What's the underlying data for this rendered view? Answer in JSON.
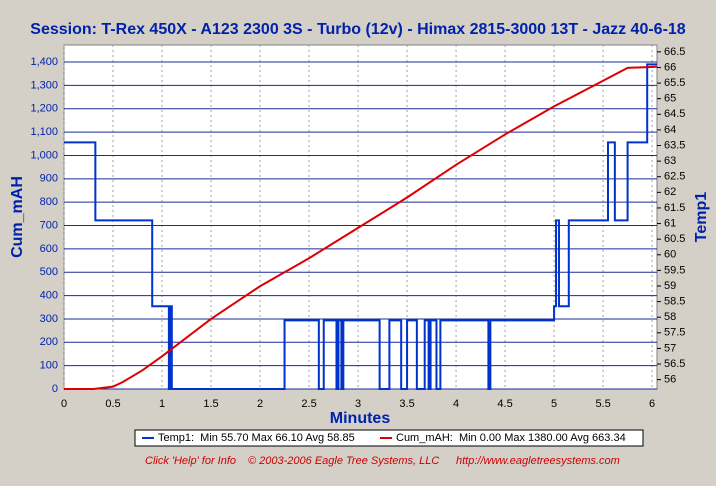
{
  "chart_data": {
    "type": "line",
    "title": "Session: T-Rex 450X - A123 2300 3S - Turbo (12v) - Himax 2815-3000 13T - Jazz 40-6-18",
    "x_label": "Minutes",
    "y_label": "Cum_mAH",
    "y2_label": "Temp1",
    "xlim": [
      0,
      6.05
    ],
    "xticks": [
      0,
      0.5,
      1,
      1.5,
      2,
      2.5,
      3,
      3.5,
      4,
      4.5,
      5,
      5.5,
      6
    ],
    "ylim": [
      0,
      1473
    ],
    "yticks": [
      0,
      100,
      200,
      300,
      400,
      500,
      600,
      700,
      800,
      900,
      {
        "value": 1000,
        "label": "1,000"
      },
      {
        "value": 1100,
        "label": "1,100"
      },
      {
        "value": 1200,
        "label": "1,200"
      },
      {
        "value": 1300,
        "label": "1,300"
      },
      {
        "value": 1400,
        "label": "1,400"
      }
    ],
    "y2lim": [
      55.7,
      66.72
    ],
    "y2ticks": [
      56,
      56.5,
      57,
      57.5,
      58,
      58.5,
      59,
      59.5,
      60,
      60.5,
      61,
      61.5,
      62,
      62.5,
      63,
      63.5,
      64,
      64.5,
      65,
      65.5,
      66,
      66.5
    ],
    "grid": true,
    "series": [
      {
        "name": "Temp1",
        "color": "#0033cc",
        "axis": "y2",
        "x": [
          0,
          0.32,
          0.32,
          0.9,
          0.9,
          1.07,
          1.07,
          1.08,
          1.08,
          1.1,
          1.1,
          2.25,
          2.25,
          2.6,
          2.6,
          2.65,
          2.65,
          2.78,
          2.78,
          2.8,
          2.8,
          2.83,
          2.83,
          2.85,
          2.85,
          3.22,
          3.22,
          3.32,
          3.32,
          3.44,
          3.44,
          3.5,
          3.5,
          3.6,
          3.6,
          3.68,
          3.68,
          3.72,
          3.72,
          3.74,
          3.74,
          3.8,
          3.8,
          3.84,
          3.84,
          4.33,
          4.33,
          4.35,
          4.35,
          5.0,
          5.0,
          5.02,
          5.02,
          5.05,
          5.05,
          5.15,
          5.15,
          5.55,
          5.55,
          5.62,
          5.62,
          5.75,
          5.75,
          5.95,
          5.95,
          6.05
        ],
        "values": [
          63.6,
          63.6,
          61.1,
          61.1,
          58.35,
          58.35,
          55.7,
          55.7,
          58.35,
          58.35,
          55.7,
          55.7,
          57.9,
          57.9,
          55.7,
          55.7,
          57.9,
          57.9,
          55.7,
          55.7,
          57.9,
          57.9,
          55.7,
          55.7,
          57.9,
          57.9,
          55.7,
          55.7,
          57.9,
          57.9,
          55.7,
          55.7,
          57.9,
          57.9,
          55.7,
          55.7,
          57.9,
          57.9,
          55.7,
          55.7,
          57.9,
          57.9,
          55.7,
          55.7,
          57.9,
          57.9,
          55.7,
          55.7,
          57.9,
          57.9,
          58.35,
          58.35,
          61.1,
          61.1,
          58.35,
          58.35,
          61.1,
          61.1,
          63.6,
          63.6,
          61.1,
          61.1,
          63.6,
          63.6,
          66.1,
          66.1
        ]
      },
      {
        "name": "Cum_mAH",
        "color": "#dd0000",
        "x": [
          0,
          0.3,
          0.5,
          0.6,
          0.8,
          1,
          1.5,
          2,
          2.5,
          3,
          3.5,
          4,
          4.5,
          5,
          5.5,
          5.75,
          6.05
        ],
        "values": [
          0,
          0,
          10,
          30,
          80,
          140,
          300,
          440,
          560,
          690,
          820,
          960,
          1090,
          1210,
          1320,
          1375,
          1380
        ]
      }
    ],
    "legend": [
      "Temp1:  Min 55.70 Max 66.10 Avg 58.85",
      "Cum_mAH:  Min 0.00 Max 1380.00 Avg 663.34"
    ],
    "footer": [
      "Click 'Help' for Info",
      "© 2003-2006 Eagle Tree Systems, LLC",
      "http://www.eagletreesystems.com"
    ]
  }
}
